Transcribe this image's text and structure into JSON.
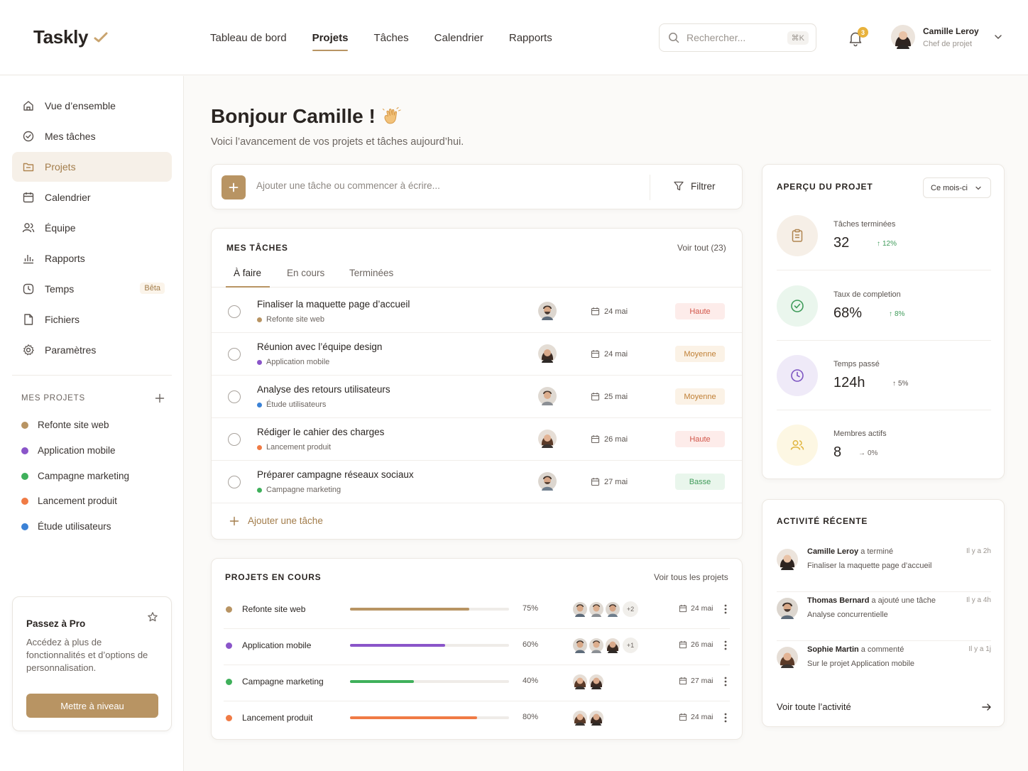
{
  "app": {
    "name": "Taskly"
  },
  "topnav": [
    {
      "label": "Tableau de bord",
      "active": false
    },
    {
      "label": "Projets",
      "active": true
    },
    {
      "label": "Tâches",
      "active": false
    },
    {
      "label": "Calendrier",
      "active": false
    },
    {
      "label": "Rapports",
      "active": false
    }
  ],
  "search": {
    "placeholder": "Rechercher...",
    "shortcut": "⌘K"
  },
  "notifications": {
    "count": "3"
  },
  "user": {
    "name": "Camille Leroy",
    "role": "Chef de projet"
  },
  "sidebar": {
    "items": [
      {
        "label": "Vue d’ensemble",
        "icon": "home-icon"
      },
      {
        "label": "Mes tâches",
        "icon": "check-circle-icon"
      },
      {
        "label": "Projets",
        "icon": "folder-icon",
        "active": true
      },
      {
        "label": "Calendrier",
        "icon": "calendar-icon"
      },
      {
        "label": "Équipe",
        "icon": "users-icon"
      },
      {
        "label": "Rapports",
        "icon": "bar-chart-icon"
      },
      {
        "label": "Temps",
        "icon": "clock-icon",
        "badge": "Bêta"
      },
      {
        "label": "Fichiers",
        "icon": "file-icon"
      },
      {
        "label": "Paramètres",
        "icon": "gear-icon"
      }
    ],
    "my_projects_title": "MES PROJETS",
    "projects": [
      {
        "label": "Refonte site web",
        "color": "#b89463"
      },
      {
        "label": "Application mobile",
        "color": "#8a55c9"
      },
      {
        "label": "Campagne marketing",
        "color": "#3fb05b"
      },
      {
        "label": "Lancement produit",
        "color": "#f07b45"
      },
      {
        "label": "Étude utilisateurs",
        "color": "#3b82d6"
      }
    ],
    "pro": {
      "title": "Passez à Pro",
      "desc": "Accédez à plus de fonctionnalités et d’options de personnalisation.",
      "button": "Mettre à niveau"
    }
  },
  "main": {
    "greeting": "Bonjour Camille !",
    "subtitle": "Voici l’avancement de vos projets et tâches aujourd’hui.",
    "quick_add": {
      "placeholder": "Ajouter une tâche ou commencer à écrire...",
      "filter": "Filtrer"
    },
    "tasks": {
      "title": "MES TÂCHES",
      "see_all": "Voir tout (23)",
      "tabs": [
        "À faire",
        "En cours",
        "Terminées"
      ],
      "rows": [
        {
          "title": "Finaliser la maquette page d’accueil",
          "project": "Refonte site web",
          "color": "#b89463",
          "date": "24 mai",
          "priority": "Haute",
          "prio_class": "haute"
        },
        {
          "title": "Réunion avec l’équipe design",
          "project": "Application mobile",
          "color": "#8a55c9",
          "date": "24 mai",
          "priority": "Moyenne",
          "prio_class": "moyenne"
        },
        {
          "title": "Analyse des retours utilisateurs",
          "project": "Étude utilisateurs",
          "color": "#3b82d6",
          "date": "25 mai",
          "priority": "Moyenne",
          "prio_class": "moyenne"
        },
        {
          "title": "Rédiger le cahier des charges",
          "project": "Lancement produit",
          "color": "#f07b45",
          "date": "26 mai",
          "priority": "Haute",
          "prio_class": "haute"
        },
        {
          "title": "Préparer campagne réseaux sociaux",
          "project": "Campagne marketing",
          "color": "#3fb05b",
          "date": "27 mai",
          "priority": "Basse",
          "prio_class": "basse"
        }
      ],
      "add_label": "Ajouter une tâche"
    },
    "projects": {
      "title": "PROJETS EN COURS",
      "see_all": "Voir tous les projets",
      "rows": [
        {
          "name": "Refonte site web",
          "color": "#b89463",
          "progress": 75,
          "pct": "75%",
          "more": "+2",
          "date": "24 mai"
        },
        {
          "name": "Application mobile",
          "color": "#8a55c9",
          "progress": 60,
          "pct": "60%",
          "more": "+1",
          "date": "26 mai"
        },
        {
          "name": "Campagne marketing",
          "color": "#3fb05b",
          "progress": 40,
          "pct": "40%",
          "more": "",
          "date": "27 mai"
        },
        {
          "name": "Lancement produit",
          "color": "#f07b45",
          "progress": 80,
          "pct": "80%",
          "more": "",
          "date": "24 mai"
        }
      ]
    }
  },
  "overview": {
    "title": "APERÇU DU PROJET",
    "period": "Ce mois-ci",
    "stats": [
      {
        "label": "Tâches terminées",
        "value": "32",
        "trend": "12%",
        "trend_dir": "up"
      },
      {
        "label": "Taux de completion",
        "value": "68%",
        "trend": "8%",
        "trend_dir": "up"
      },
      {
        "label": "Temps passé",
        "value": "124h",
        "trend": "5%",
        "trend_dir": "up"
      },
      {
        "label": "Membres actifs",
        "value": "8",
        "trend": "0%",
        "trend_dir": "flat"
      }
    ]
  },
  "activity": {
    "title": "ACTIVITÉ RÉCENTE",
    "items": [
      {
        "name": "Camille Leroy",
        "action": "a terminé",
        "detail": "Finaliser la maquette page d’accueil",
        "time": "Il y a 2h"
      },
      {
        "name": "Thomas Bernard",
        "action": "a ajouté une tâche",
        "detail": "Analyse concurrentielle",
        "time": "Il y a 4h"
      },
      {
        "name": "Sophie Martin",
        "action": "a commenté",
        "detail": "Sur le projet Application mobile",
        "time": "Il y a 1j"
      }
    ],
    "see_all": "Voir toute l’activité"
  }
}
